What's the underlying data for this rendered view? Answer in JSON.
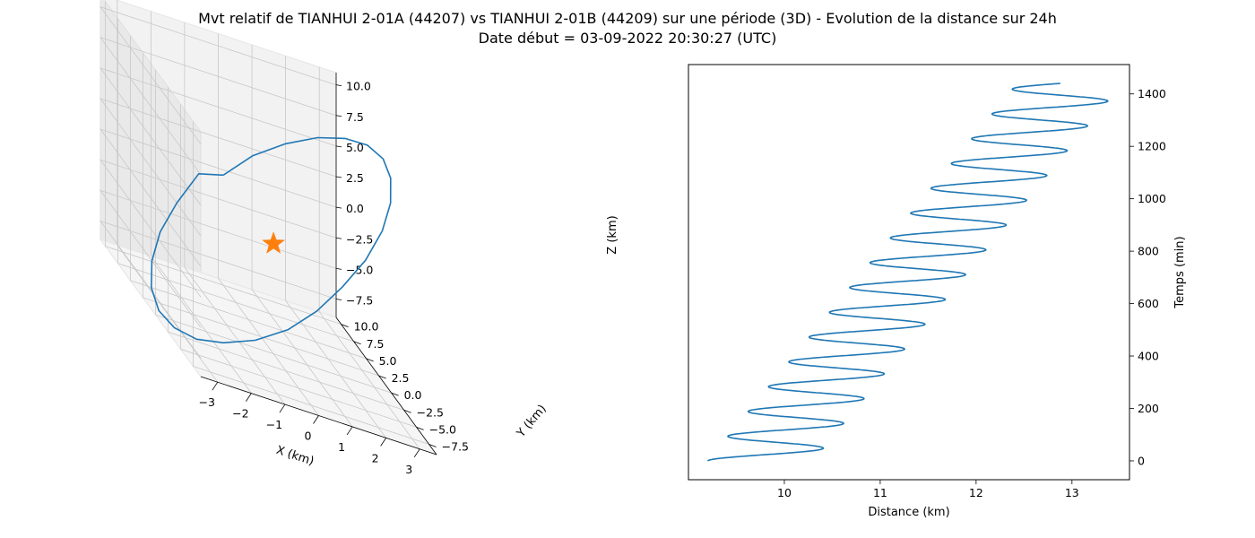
{
  "figure": {
    "title_line1": "Mvt relatif de TIANHUI 2-01A (44207) vs TIANHUI 2-01B (44209) sur une période (3D) - Evolution de la distance sur 24h",
    "title_line2": "Date début = 03-09-2022 20:30:27 (UTC)"
  },
  "chart_data": [
    {
      "type": "line3d",
      "xlabel": "X (km)",
      "ylabel": "Y (km)",
      "zlabel": "Z (km)",
      "xticks": [
        "−3",
        "−2",
        "−1",
        "0",
        "1",
        "2",
        "3"
      ],
      "yticks": [
        "−7.5",
        "−5.0",
        "−2.5",
        "0.0",
        "2.5",
        "5.0",
        "7.5",
        "10.0"
      ],
      "zticks": [
        "−7.5",
        "−5.0",
        "−2.5",
        "0.0",
        "2.5",
        "5.0",
        "7.5",
        "10.0"
      ],
      "xlim": [
        -3.5,
        3.5
      ],
      "ylim": [
        -9,
        11
      ],
      "zlim": [
        -9,
        11
      ],
      "grid": true,
      "series": [
        {
          "kind": "relative-orbit",
          "color": "#1f77b4",
          "x": [
            0.0,
            0.82,
            1.66,
            2.38,
            2.91,
            3.24,
            3.36,
            3.24,
            2.91,
            2.38,
            1.66,
            0.82,
            0.0,
            -0.82,
            -1.66,
            -2.38,
            -2.91,
            -3.24,
            -3.36,
            -3.24,
            -2.91,
            -2.38,
            -1.66,
            -0.82,
            0.0
          ],
          "y": [
            10.0,
            9.68,
            8.71,
            7.2,
            5.26,
            3.04,
            0.7,
            -1.6,
            -3.8,
            -5.7,
            -7.2,
            -8.2,
            -8.6,
            -8.35,
            -7.5,
            -6.0,
            -4.2,
            -2.0,
            0.3,
            2.6,
            4.7,
            6.6,
            8.1,
            9.4,
            10.0
          ],
          "z": [
            0.0,
            2.5,
            4.8,
            6.8,
            8.3,
            9.3,
            9.6,
            9.2,
            8.1,
            6.4,
            4.2,
            1.8,
            -0.7,
            -3.1,
            -5.2,
            -6.9,
            -8.1,
            -8.7,
            -8.7,
            -8.0,
            -6.7,
            -4.9,
            -2.7,
            -0.3,
            0.0
          ]
        },
        {
          "kind": "reference-marker",
          "marker": "star",
          "color": "#ff7f0e",
          "x": [
            0
          ],
          "y": [
            0
          ],
          "z": [
            0
          ]
        }
      ]
    },
    {
      "type": "line",
      "xlabel": "Distance (km)",
      "ylabel": "Temps (min)",
      "xlim": [
        9.0,
        13.6
      ],
      "ylim": [
        -72,
        1512
      ],
      "xticks": [
        10,
        11,
        12,
        13
      ],
      "yticks": [
        0,
        200,
        400,
        600,
        800,
        1000,
        1200,
        1400
      ],
      "y_axis_side": "right",
      "grid": false,
      "series": [
        {
          "color": "#1f77b4",
          "x_model": "distance = 9.20 + 0.00224 * t + 0.55 * (1 - cos(2*pi*t/94.6)), t = Temps in min",
          "x": [
            9.2,
            10.31,
            9.42,
            10.54,
            9.65,
            10.76,
            9.87,
            10.98,
            10.1,
            11.21,
            10.32,
            11.43,
            10.54,
            11.65,
            10.76,
            11.87,
            10.99,
            12.1,
            11.21,
            12.32,
            11.43,
            12.54,
            11.66,
            12.77,
            11.88,
            12.99,
            12.1,
            13.21,
            12.33,
            13.44,
            12.62
          ],
          "y": [
            0,
            47,
            95,
            142,
            189,
            237,
            284,
            331,
            378,
            426,
            473,
            520,
            568,
            615,
            662,
            710,
            757,
            804,
            851,
            899,
            946,
            993,
            1041,
            1088,
            1135,
            1183,
            1230,
            1277,
            1324,
            1372,
            1440
          ]
        }
      ]
    }
  ]
}
